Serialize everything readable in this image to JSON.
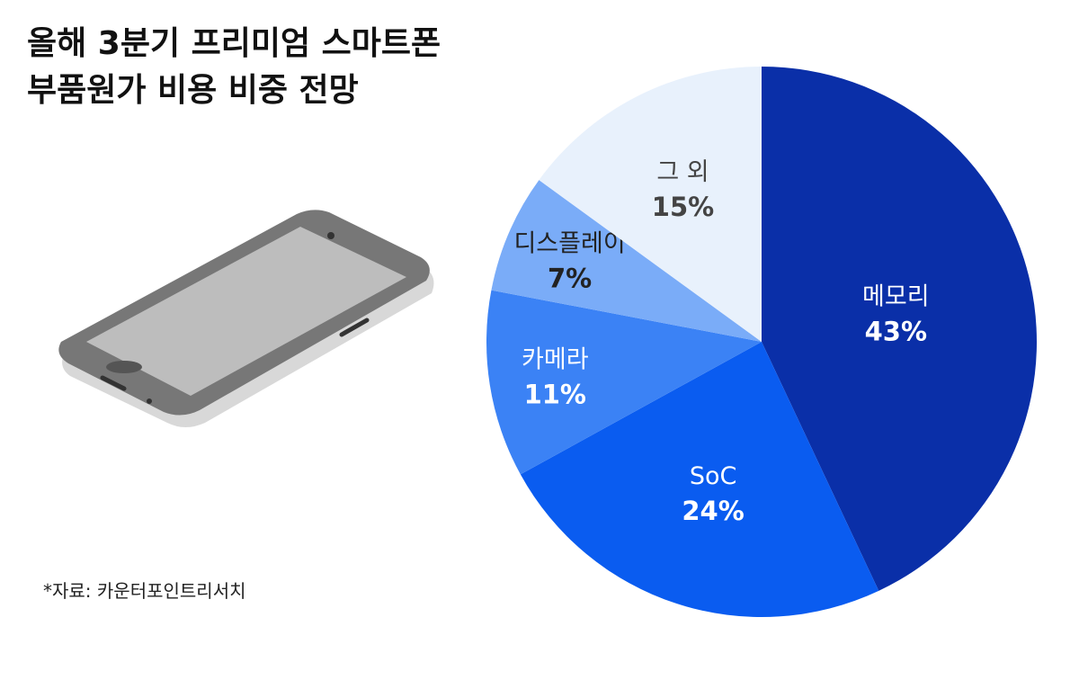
{
  "chart_data": {
    "type": "pie",
    "title": [
      "올해 3분기 프리미엄 스마트폰",
      "부품원가 비용 비중 전망"
    ],
    "categories": [
      "메모리",
      "SoC",
      "카메라",
      "디스플레이",
      "그 외"
    ],
    "values": [
      43,
      24,
      11,
      7,
      15
    ],
    "value_labels": [
      "43%",
      "24%",
      "11%",
      "7%",
      "15%"
    ],
    "colors": [
      "#0a2fa8",
      "#0a5cf0",
      "#3b82f5",
      "#7aacf8",
      "#e8f1fc"
    ],
    "label_colors": [
      "#ffffff",
      "#ffffff",
      "#ffffff",
      "#222222",
      "#444444"
    ],
    "source": "*자료: 카운터포인트리서치"
  }
}
